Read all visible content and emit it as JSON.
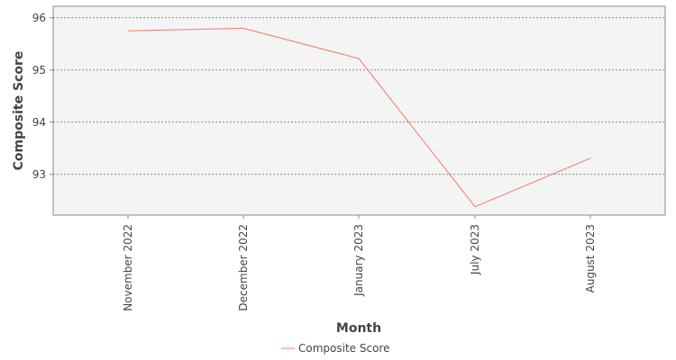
{
  "chart_data": {
    "type": "line",
    "title": "",
    "xlabel": "Month",
    "ylabel": "Composite Score",
    "categories": [
      "November 2022",
      "December 2022",
      "January 2023",
      "July 2023",
      "August 2023"
    ],
    "series": [
      {
        "name": "Composite Score",
        "color": "#f8766d",
        "values": [
          95.75,
          95.8,
          95.22,
          92.38,
          93.31
        ]
      }
    ],
    "y_ticks": [
      93,
      94,
      95,
      96
    ],
    "ylim": [
      92.22,
      96.22
    ],
    "grid": {
      "horizontal": true,
      "vertical": false,
      "style": "dotted"
    },
    "legend": {
      "position": "bottom"
    },
    "plot_background": "#f4f4f4"
  }
}
